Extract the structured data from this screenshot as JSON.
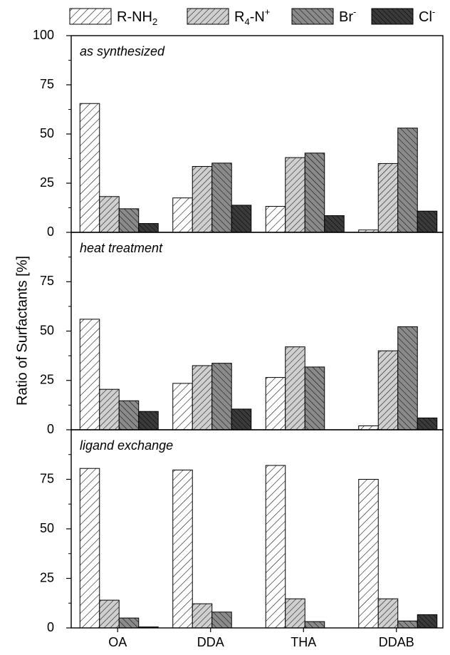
{
  "chart_data": {
    "type": "bar",
    "ylabel": "Ratio of Surfactants [%]",
    "categories": [
      "OA",
      "DDA",
      "THA",
      "DDAB"
    ],
    "legend": {
      "position": "top",
      "entries": [
        {
          "text": "R-NH",
          "sub": "2",
          "sup": "",
          "tail": "",
          "pattern": "hatch-light"
        },
        {
          "text": "R",
          "sub": "4",
          "sup": "+",
          "tail": "-N",
          "pattern": "hatch-medium"
        },
        {
          "text": "Br",
          "sub": "",
          "sup": "-",
          "tail": "",
          "pattern": "hatch-dark"
        },
        {
          "text": "Cl",
          "sub": "",
          "sup": "-",
          "tail": "",
          "pattern": "hatch-black"
        }
      ]
    },
    "panels": [
      {
        "title": "as synthesized",
        "ylim": [
          0,
          100
        ],
        "yticks": [
          0,
          25,
          50,
          75,
          100
        ],
        "series": [
          {
            "values": [
              65.5,
              17.5,
              13.2,
              1.2
            ]
          },
          {
            "values": [
              18.2,
              33.5,
              38.0,
              35.0
            ]
          },
          {
            "values": [
              12.0,
              35.2,
              40.3,
              53.0
            ]
          },
          {
            "values": [
              4.5,
              13.8,
              8.5,
              10.8
            ]
          }
        ]
      },
      {
        "title": "heat treatment",
        "ylim": [
          0,
          100
        ],
        "yticks": [
          0,
          25,
          50,
          75
        ],
        "series": [
          {
            "values": [
              56.0,
              23.5,
              26.5,
              2.0
            ]
          },
          {
            "values": [
              20.5,
              32.5,
              42.0,
              40.0
            ]
          },
          {
            "values": [
              14.7,
              33.7,
              31.8,
              52.2
            ]
          },
          {
            "values": [
              9.3,
              10.5,
              0,
              6.0
            ]
          }
        ]
      },
      {
        "title": "ligand exchange",
        "ylim": [
          0,
          100
        ],
        "yticks": [
          0,
          25,
          50,
          75
        ],
        "series": [
          {
            "values": [
              80.5,
              79.7,
              82.0,
              75.0
            ]
          },
          {
            "values": [
              14.0,
              12.2,
              14.7,
              14.7
            ]
          },
          {
            "values": [
              5.0,
              8.0,
              3.2,
              3.5
            ]
          },
          {
            "values": [
              0.5,
              0,
              0,
              6.7
            ]
          }
        ]
      }
    ],
    "colors": {
      "hatch-light": "#ffffff",
      "hatch-medium": "#cfcfcf",
      "hatch-dark": "#8a8a8a",
      "hatch-black": "#3a3a3a"
    }
  }
}
